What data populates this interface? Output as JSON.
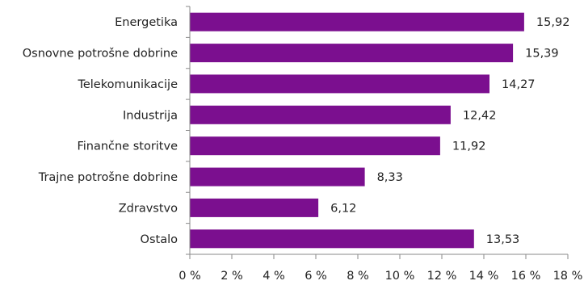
{
  "chart_data": {
    "type": "bar",
    "orientation": "horizontal",
    "categories": [
      "Energetika",
      "Osnovne potrošne dobrine",
      "Telekomunikacije",
      "Industrija",
      "Finančne storitve",
      "Trajne potrošne dobrine",
      "Zdravstvo",
      "Ostalo"
    ],
    "values": [
      15.92,
      15.39,
      14.27,
      12.42,
      11.92,
      8.33,
      6.12,
      13.53
    ],
    "value_labels": [
      "15,92",
      "15,39",
      "14,27",
      "12,42",
      "11,92",
      "8,33",
      "6,12",
      "13,53"
    ],
    "xlim": [
      0,
      18
    ],
    "x_ticks": [
      0,
      2,
      4,
      6,
      8,
      10,
      12,
      14,
      16,
      18
    ],
    "x_tick_labels": [
      "0 %",
      "2 %",
      "4 %",
      "6 %",
      "8 %",
      "10 %",
      "12 %",
      "14 %",
      "16 %",
      "18 %"
    ],
    "title": "",
    "xlabel": "",
    "ylabel": "",
    "grid": false,
    "legend": "none",
    "bar_color": "#7b0f8f",
    "axis_color": "#8a8a8a"
  }
}
